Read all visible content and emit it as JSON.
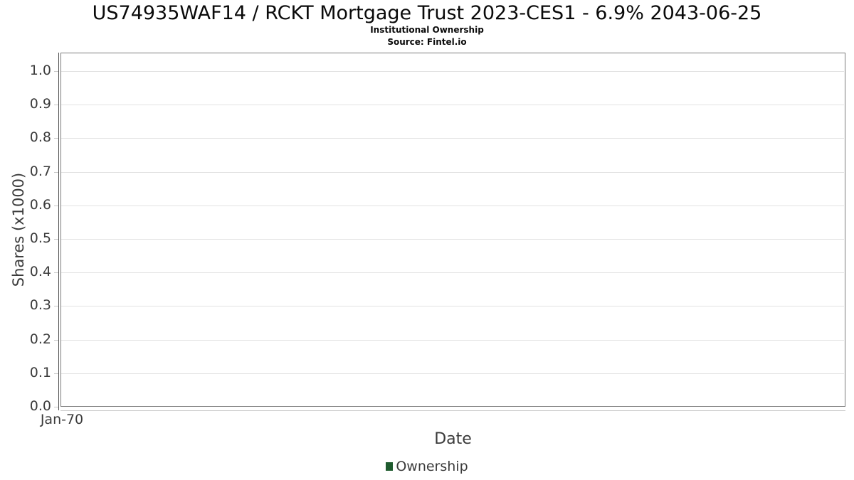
{
  "header": {
    "title": "US74935WAF14 / RCKT Mortgage Trust 2023-CES1 - 6.9% 2043-06-25",
    "subtitle": "Institutional Ownership",
    "source": "Source: Fintel.io"
  },
  "chart_data": {
    "type": "line",
    "title": "US74935WAF14 / RCKT Mortgage Trust 2023-CES1 - 6.9% 2043-06-25",
    "subtitle": "Institutional Ownership",
    "source": "Source: Fintel.io",
    "xlabel": "Date",
    "ylabel": "Shares (x1000)",
    "ylim": [
      0,
      1.053
    ],
    "yticks": [
      0.0,
      0.1,
      0.2,
      0.3,
      0.4,
      0.5,
      0.6,
      0.7,
      0.8,
      0.9,
      1.0
    ],
    "ytick_labels": [
      "0.0",
      "0.1",
      "0.2",
      "0.3",
      "0.4",
      "0.5",
      "0.6",
      "0.7",
      "0.8",
      "0.9",
      "1.0"
    ],
    "xtick_labels": [
      "Jan-70"
    ],
    "grid": true,
    "legend_position": "bottom",
    "series": [
      {
        "name": "Ownership",
        "color": "#1e5b2e",
        "x": [],
        "values": []
      }
    ],
    "note": "empty plot area - no data points are rendered"
  },
  "colors": {
    "plot_border": "#7d7d7d",
    "gridline": "#e2e2e2",
    "axis_line_dark": "#4c4c4c",
    "axis_line_light": "#c9c9c9",
    "text": "#3b3b3b",
    "title_text": "#0a0a0a",
    "legend_marker": "#1e5b2e"
  }
}
